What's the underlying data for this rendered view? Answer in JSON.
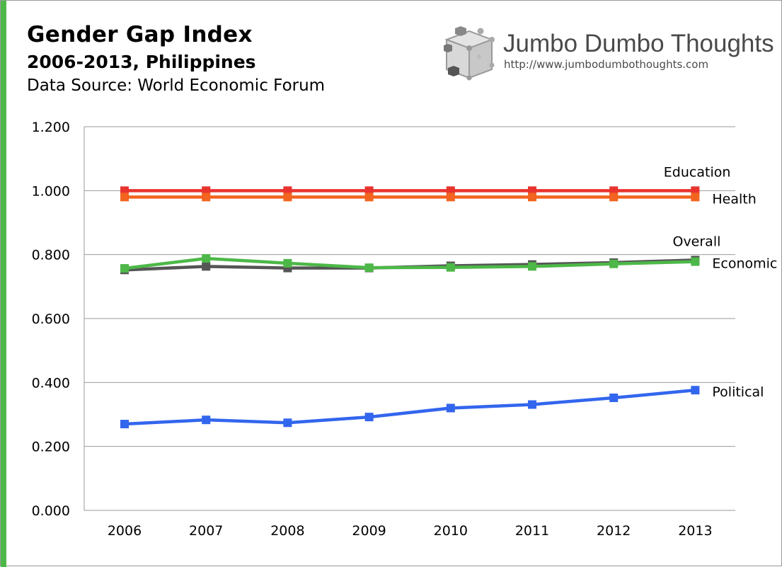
{
  "colors": {
    "accent": "#4db848",
    "education": "#e8332e",
    "health": "#f2641f",
    "overall": "#555555",
    "economic": "#4db848",
    "political": "#3366ee",
    "grid": "#9a9a9a"
  },
  "logo": {
    "name": "Jumbo Dumbo Thoughts",
    "url": "http://www.jumbodumbothoughts.com",
    "icon": "cube-logo-icon"
  },
  "chart_data": {
    "type": "line",
    "title": "Gender Gap Index",
    "subtitle": "2006-2013, Philippines",
    "source": "Data Source: World Economic Forum",
    "xlabel": "",
    "ylabel": "",
    "categories": [
      "2006",
      "2007",
      "2008",
      "2009",
      "2010",
      "2011",
      "2012",
      "2013"
    ],
    "ylim": [
      0,
      1.2
    ],
    "yticks": [
      "0.000",
      "0.200",
      "0.400",
      "0.600",
      "0.800",
      "1.000",
      "1.200"
    ],
    "grid": true,
    "legend": "inline labels at right end of each line",
    "series": [
      {
        "name": "Education",
        "color": "#e8332e",
        "values": [
          1.0,
          1.0,
          1.0,
          1.0,
          1.0,
          1.0,
          1.0,
          1.0
        ]
      },
      {
        "name": "Health",
        "color": "#f2641f",
        "values": [
          0.98,
          0.98,
          0.98,
          0.98,
          0.98,
          0.98,
          0.98,
          0.98
        ]
      },
      {
        "name": "Overall",
        "color": "#555555",
        "values": [
          0.752,
          0.763,
          0.758,
          0.758,
          0.765,
          0.769,
          0.775,
          0.783
        ]
      },
      {
        "name": "Economic",
        "color": "#4db848",
        "values": [
          0.757,
          0.788,
          0.773,
          0.759,
          0.76,
          0.763,
          0.771,
          0.778
        ]
      },
      {
        "name": "Political",
        "color": "#3366ee",
        "values": [
          0.27,
          0.283,
          0.274,
          0.292,
          0.32,
          0.331,
          0.352,
          0.376
        ]
      }
    ]
  }
}
